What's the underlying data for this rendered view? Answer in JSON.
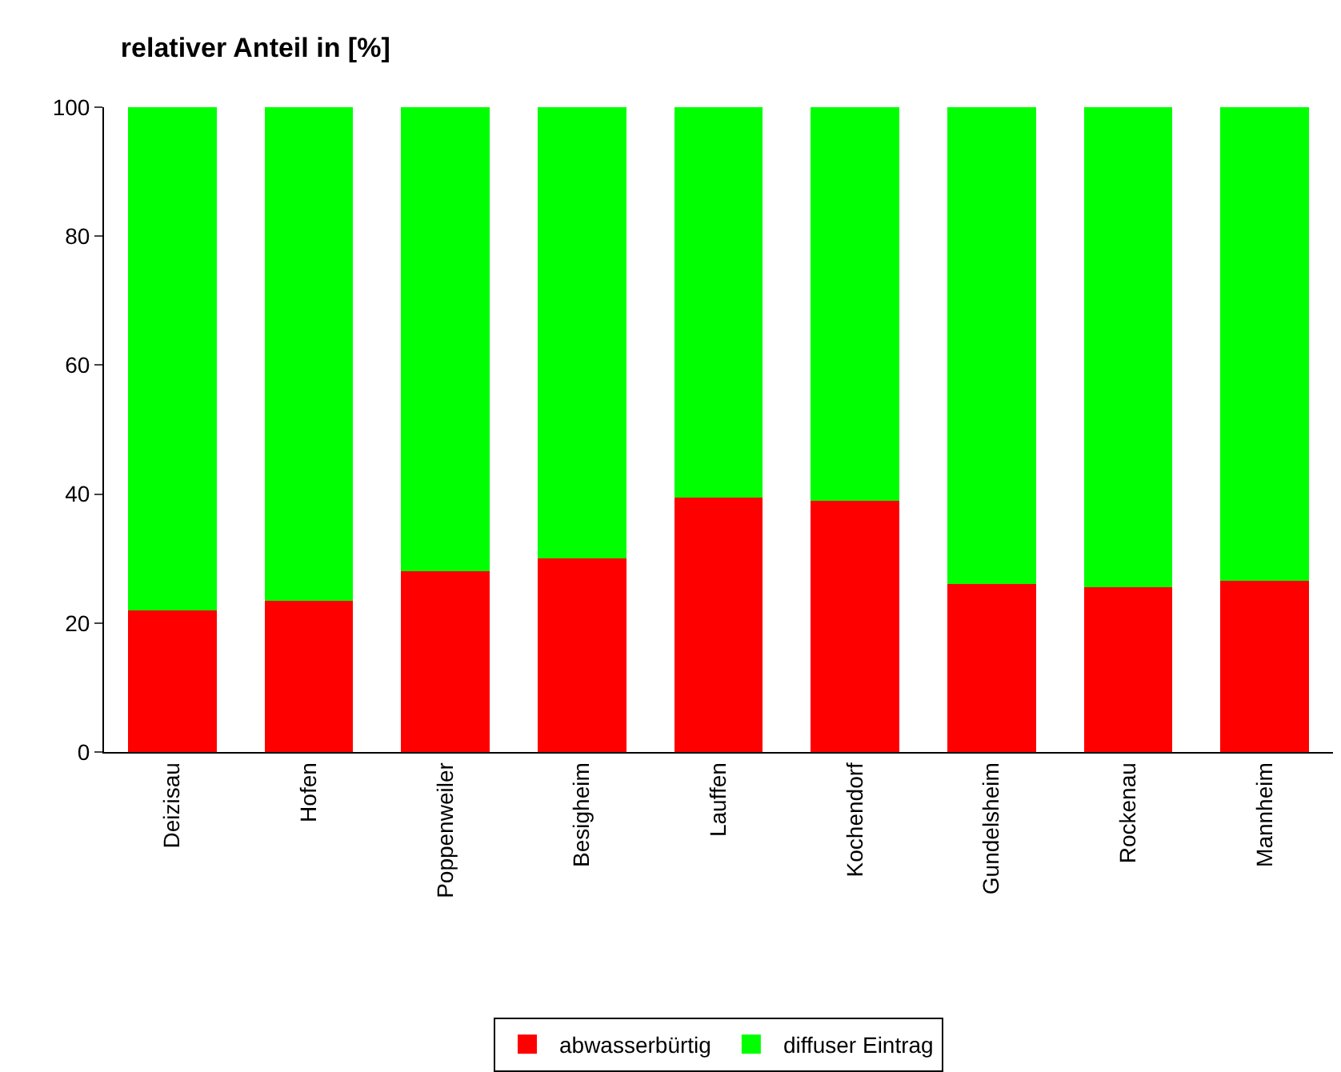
{
  "chart_data": {
    "type": "bar",
    "title": "relativer Anteil in [%]",
    "stacked": true,
    "categories": [
      "Deizisau",
      "Hofen",
      "Poppenweiler",
      "Besigheim",
      "Lauffen",
      "Kochendorf",
      "Gundelsheim",
      "Rockenau",
      "Mannheim"
    ],
    "series": [
      {
        "name": "abwasserbürtig",
        "color": "#ff0000",
        "values": [
          22,
          23.5,
          28,
          30,
          39.5,
          39,
          26,
          25.5,
          26.5
        ]
      },
      {
        "name": "diffuser Eintrag",
        "color": "#00ff00",
        "values": [
          78,
          76.5,
          72,
          70,
          60.5,
          61,
          74,
          74.5,
          73.5
        ]
      }
    ],
    "ylim": [
      0,
      100
    ],
    "yticks": [
      0,
      20,
      40,
      60,
      80,
      100
    ],
    "grid": false,
    "legend": "bottom"
  }
}
